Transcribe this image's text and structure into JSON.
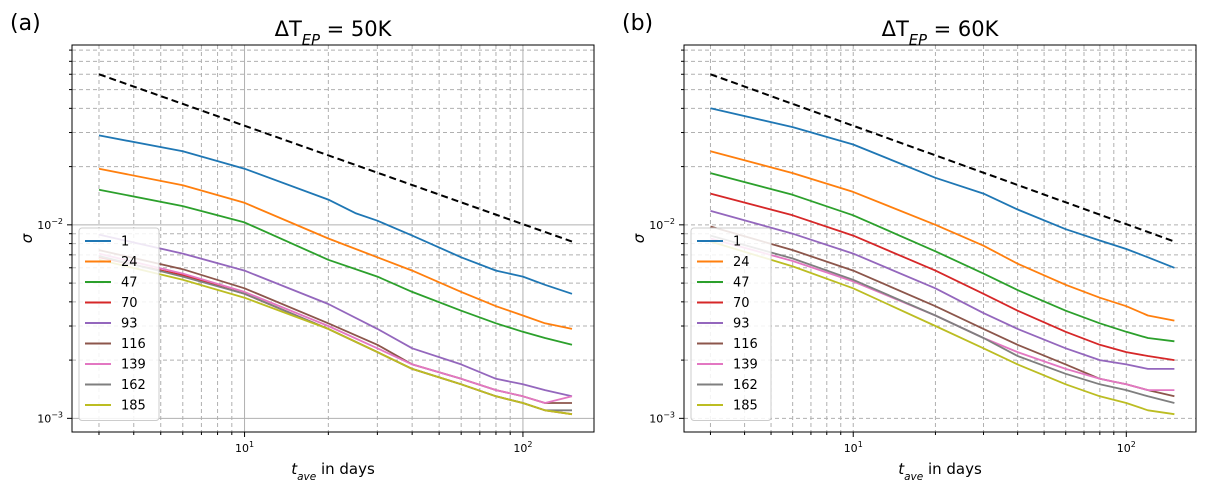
{
  "chart_data": [
    {
      "panel_label": "(a)",
      "type": "line",
      "title": "ΔT_EP = 50K",
      "title_main": "ΔT",
      "title_sub": "EP",
      "title_tail": " = 50K",
      "xlabel_main": "t",
      "xlabel_sub": "ave",
      "xlabel_tail": " in days",
      "ylabel": "σ",
      "xscale": "log",
      "yscale": "log",
      "xlim": [
        2.4,
        180
      ],
      "ylim": [
        0.00085,
        0.085
      ],
      "grid": true,
      "legend_position": "lower-left",
      "x_ticks": [
        {
          "value": 10,
          "base": "10",
          "exp": "1"
        },
        {
          "value": 100,
          "base": "10",
          "exp": "2"
        }
      ],
      "y_ticks": [
        {
          "value": 0.001,
          "base": "10",
          "exp": "−3"
        },
        {
          "value": 0.01,
          "base": "10",
          "exp": "−2"
        }
      ],
      "reference_line": {
        "style": "black dashed",
        "x": [
          3,
          150
        ],
        "y": [
          0.06,
          0.0082
        ]
      },
      "series": [
        {
          "name": "1",
          "color": "#1f77b4",
          "x": [
            3,
            6,
            10,
            20,
            25,
            30,
            40,
            60,
            80,
            100,
            120,
            150
          ],
          "y": [
            0.029,
            0.024,
            0.0195,
            0.0135,
            0.0115,
            0.0105,
            0.0088,
            0.0068,
            0.0058,
            0.0054,
            0.0049,
            0.0044
          ]
        },
        {
          "name": "24",
          "color": "#ff7f0e",
          "x": [
            3,
            6,
            10,
            20,
            30,
            40,
            60,
            80,
            100,
            120,
            150
          ],
          "y": [
            0.0195,
            0.016,
            0.013,
            0.0085,
            0.0068,
            0.0058,
            0.0045,
            0.0038,
            0.0034,
            0.0031,
            0.0029
          ]
        },
        {
          "name": "47",
          "color": "#2ca02c",
          "x": [
            3,
            6,
            10,
            20,
            30,
            40,
            60,
            80,
            100,
            120,
            150
          ],
          "y": [
            0.0152,
            0.0125,
            0.0103,
            0.0066,
            0.0054,
            0.0045,
            0.0036,
            0.0031,
            0.0028,
            0.0026,
            0.0024
          ]
        },
        {
          "name": "70",
          "color": "#d62728",
          "x": [
            3,
            6,
            10,
            20,
            30,
            40,
            60,
            80,
            100,
            120,
            150
          ],
          "y": [
            0.0068,
            0.0055,
            0.0044,
            0.0029,
            0.0022,
            0.0018,
            0.0015,
            0.0013,
            0.0012,
            0.0011,
            0.00105
          ]
        },
        {
          "name": "93",
          "color": "#9467bd",
          "x": [
            3,
            6,
            10,
            20,
            30,
            40,
            60,
            80,
            100,
            120,
            150
          ],
          "y": [
            0.0089,
            0.0071,
            0.0058,
            0.0039,
            0.0029,
            0.0023,
            0.0019,
            0.0016,
            0.0015,
            0.0014,
            0.0013
          ]
        },
        {
          "name": "116",
          "color": "#8c564b",
          "x": [
            3,
            6,
            10,
            20,
            30,
            40,
            60,
            80,
            100,
            120,
            150
          ],
          "y": [
            0.0074,
            0.0059,
            0.0047,
            0.0031,
            0.0024,
            0.0019,
            0.0016,
            0.0014,
            0.0013,
            0.0012,
            0.0012
          ]
        },
        {
          "name": "139",
          "color": "#e377c2",
          "x": [
            3,
            6,
            10,
            20,
            30,
            40,
            60,
            80,
            100,
            120,
            150
          ],
          "y": [
            0.0071,
            0.0056,
            0.0045,
            0.003,
            0.0023,
            0.0019,
            0.0016,
            0.0014,
            0.0013,
            0.0012,
            0.0013
          ]
        },
        {
          "name": "162",
          "color": "#7f7f7f",
          "x": [
            3,
            6,
            10,
            20,
            30,
            40,
            60,
            80,
            100,
            120,
            150
          ],
          "y": [
            0.0069,
            0.0054,
            0.0044,
            0.0029,
            0.0022,
            0.0018,
            0.0015,
            0.0013,
            0.0012,
            0.0011,
            0.0011
          ]
        },
        {
          "name": "185",
          "color": "#bcbd22",
          "x": [
            3,
            6,
            10,
            20,
            30,
            40,
            60,
            80,
            100,
            120,
            150
          ],
          "y": [
            0.0066,
            0.0052,
            0.0042,
            0.0029,
            0.0022,
            0.0018,
            0.0015,
            0.0013,
            0.0012,
            0.0011,
            0.00105
          ]
        }
      ]
    },
    {
      "panel_label": "(b)",
      "type": "line",
      "title": "ΔT_EP = 60K",
      "title_main": "ΔT",
      "title_sub": "EP",
      "title_tail": " = 60K",
      "xlabel_main": "t",
      "xlabel_sub": "ave",
      "xlabel_tail": " in days",
      "ylabel": "σ",
      "xscale": "log",
      "yscale": "log",
      "xlim": [
        2.4,
        180
      ],
      "ylim": [
        0.00085,
        0.085
      ],
      "grid": true,
      "legend_position": "lower-left",
      "x_ticks": [
        {
          "value": 10,
          "base": "10",
          "exp": "1"
        },
        {
          "value": 100,
          "base": "10",
          "exp": "2"
        }
      ],
      "y_ticks": [
        {
          "value": 0.001,
          "base": "10",
          "exp": "−3"
        },
        {
          "value": 0.01,
          "base": "10",
          "exp": "−2"
        }
      ],
      "reference_line": {
        "style": "black dashed",
        "x": [
          3,
          150
        ],
        "y": [
          0.06,
          0.0082
        ]
      },
      "series": [
        {
          "name": "1",
          "color": "#1f77b4",
          "x": [
            3,
            6,
            10,
            20,
            30,
            40,
            60,
            80,
            100,
            120,
            150
          ],
          "y": [
            0.04,
            0.032,
            0.026,
            0.0175,
            0.0145,
            0.012,
            0.0095,
            0.0083,
            0.0075,
            0.0068,
            0.006
          ]
        },
        {
          "name": "24",
          "color": "#ff7f0e",
          "x": [
            3,
            6,
            10,
            20,
            30,
            40,
            60,
            80,
            100,
            120,
            150
          ],
          "y": [
            0.024,
            0.0185,
            0.0148,
            0.01,
            0.0078,
            0.0063,
            0.0049,
            0.0042,
            0.0038,
            0.0034,
            0.0032
          ]
        },
        {
          "name": "47",
          "color": "#2ca02c",
          "x": [
            3,
            6,
            10,
            20,
            30,
            40,
            60,
            80,
            100,
            120,
            150
          ],
          "y": [
            0.0185,
            0.0143,
            0.0112,
            0.0073,
            0.0056,
            0.0046,
            0.0036,
            0.0031,
            0.0028,
            0.0026,
            0.0025
          ]
        },
        {
          "name": "70",
          "color": "#d62728",
          "x": [
            3,
            6,
            10,
            20,
            30,
            40,
            60,
            80,
            100,
            120,
            150
          ],
          "y": [
            0.0145,
            0.0112,
            0.0088,
            0.0058,
            0.0044,
            0.0036,
            0.0028,
            0.0024,
            0.0022,
            0.0021,
            0.002
          ]
        },
        {
          "name": "93",
          "color": "#9467bd",
          "x": [
            3,
            6,
            10,
            20,
            30,
            40,
            60,
            80,
            100,
            120,
            150
          ],
          "y": [
            0.0118,
            0.009,
            0.0071,
            0.0047,
            0.0035,
            0.0029,
            0.0023,
            0.002,
            0.0019,
            0.0018,
            0.0018
          ]
        },
        {
          "name": "116",
          "color": "#8c564b",
          "x": [
            3,
            6,
            10,
            20,
            30,
            40,
            60,
            80,
            100,
            120,
            150
          ],
          "y": [
            0.0098,
            0.0074,
            0.0058,
            0.0038,
            0.0029,
            0.0024,
            0.0019,
            0.0016,
            0.0015,
            0.0014,
            0.0013
          ]
        },
        {
          "name": "139",
          "color": "#e377c2",
          "x": [
            3,
            6,
            10,
            20,
            30,
            40,
            60,
            80,
            100,
            120,
            150
          ],
          "y": [
            0.0085,
            0.0065,
            0.0051,
            0.0034,
            0.0026,
            0.0022,
            0.0018,
            0.0016,
            0.0015,
            0.0014,
            0.0014
          ]
        },
        {
          "name": "162",
          "color": "#7f7f7f",
          "x": [
            3,
            6,
            10,
            20,
            30,
            40,
            60,
            80,
            100,
            120,
            150
          ],
          "y": [
            0.0088,
            0.0067,
            0.0052,
            0.0034,
            0.0026,
            0.0021,
            0.0017,
            0.0015,
            0.0014,
            0.0013,
            0.0012
          ]
        },
        {
          "name": "185",
          "color": "#bcbd22",
          "x": [
            3,
            6,
            10,
            20,
            30,
            40,
            60,
            80,
            100,
            120,
            150
          ],
          "y": [
            0.0082,
            0.0061,
            0.0047,
            0.003,
            0.0023,
            0.0019,
            0.0015,
            0.0013,
            0.0012,
            0.0011,
            0.00105
          ]
        }
      ]
    }
  ]
}
